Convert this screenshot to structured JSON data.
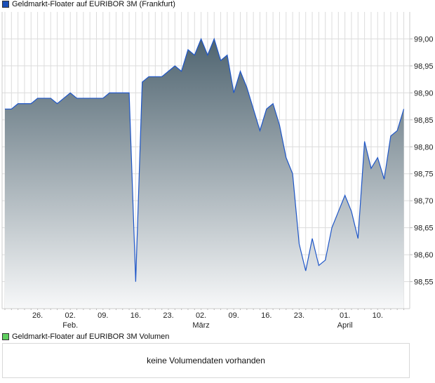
{
  "price_legend": {
    "label": "Geldmarkt-Floater auf EURIBOR 3M (Frankfurt)",
    "color": "#1a4fb8"
  },
  "volume_legend": {
    "label": "Geldmarkt-Floater auf EURIBOR 3M Volumen",
    "color": "#5fcf5f"
  },
  "volume_message": "keine Volumendaten vorhanden",
  "chart_data": {
    "type": "area",
    "title": "",
    "xlabel": "",
    "ylabel": "",
    "ylim": [
      98.5,
      99.05
    ],
    "grid": true,
    "line_color": "#1e56c8",
    "fill_top_color": "#4f6470",
    "fill_bottom_color": "#f7f8f9",
    "y_ticks": [
      "98,55",
      "98,60",
      "98,65",
      "98,70",
      "98,75",
      "98,80",
      "98,85",
      "98,90",
      "98,95",
      "99,00"
    ],
    "y_tick_values": [
      98.55,
      98.6,
      98.65,
      98.7,
      98.75,
      98.8,
      98.85,
      98.9,
      98.95,
      99.0
    ],
    "x_ticks": [
      {
        "label": "26.",
        "date": "2015-01-26"
      },
      {
        "label": "02.",
        "date": "2015-02-02",
        "month": "Feb."
      },
      {
        "label": "09.",
        "date": "2015-02-09"
      },
      {
        "label": "16.",
        "date": "2015-02-16"
      },
      {
        "label": "23.",
        "date": "2015-02-23"
      },
      {
        "label": "02.",
        "date": "2015-03-02",
        "month": "März"
      },
      {
        "label": "09.",
        "date": "2015-03-09"
      },
      {
        "label": "16.",
        "date": "2015-03-16"
      },
      {
        "label": "23.",
        "date": "2015-03-23"
      },
      {
        "label": "01.",
        "date": "2015-04-01",
        "month": "April"
      },
      {
        "label": "10.",
        "date": "2015-04-10"
      }
    ],
    "x": [
      "2015-01-19",
      "2015-01-20",
      "2015-01-21",
      "2015-01-22",
      "2015-01-23",
      "2015-01-26",
      "2015-01-27",
      "2015-01-28",
      "2015-01-29",
      "2015-01-30",
      "2015-02-02",
      "2015-02-03",
      "2015-02-04",
      "2015-02-05",
      "2015-02-06",
      "2015-02-09",
      "2015-02-10",
      "2015-02-11",
      "2015-02-12",
      "2015-02-13",
      "2015-02-16",
      "2015-02-17",
      "2015-02-18",
      "2015-02-19",
      "2015-02-20",
      "2015-02-23",
      "2015-02-24",
      "2015-02-25",
      "2015-02-26",
      "2015-02-27",
      "2015-03-02",
      "2015-03-03",
      "2015-03-04",
      "2015-03-05",
      "2015-03-06",
      "2015-03-09",
      "2015-03-10",
      "2015-03-11",
      "2015-03-12",
      "2015-03-13",
      "2015-03-16",
      "2015-03-17",
      "2015-03-18",
      "2015-03-19",
      "2015-03-20",
      "2015-03-23",
      "2015-03-24",
      "2015-03-25",
      "2015-03-26",
      "2015-03-27",
      "2015-03-30",
      "2015-03-31",
      "2015-04-01",
      "2015-04-02",
      "2015-04-07",
      "2015-04-08",
      "2015-04-09",
      "2015-04-10",
      "2015-04-13",
      "2015-04-14",
      "2015-04-15",
      "2015-04-16"
    ],
    "values": [
      98.87,
      98.87,
      98.88,
      98.88,
      98.88,
      98.89,
      98.89,
      98.89,
      98.88,
      98.89,
      98.9,
      98.89,
      98.89,
      98.89,
      98.89,
      98.89,
      98.9,
      98.9,
      98.9,
      98.9,
      98.55,
      98.92,
      98.93,
      98.93,
      98.93,
      98.94,
      98.95,
      98.94,
      98.98,
      98.97,
      99.0,
      98.97,
      99.0,
      98.96,
      98.97,
      98.9,
      98.94,
      98.91,
      98.87,
      98.83,
      98.87,
      98.88,
      98.84,
      98.78,
      98.75,
      98.62,
      98.57,
      98.63,
      98.58,
      98.59,
      98.65,
      98.68,
      98.71,
      98.68,
      98.63,
      98.81,
      98.76,
      98.78,
      98.74,
      98.82,
      98.83,
      98.87
    ]
  }
}
